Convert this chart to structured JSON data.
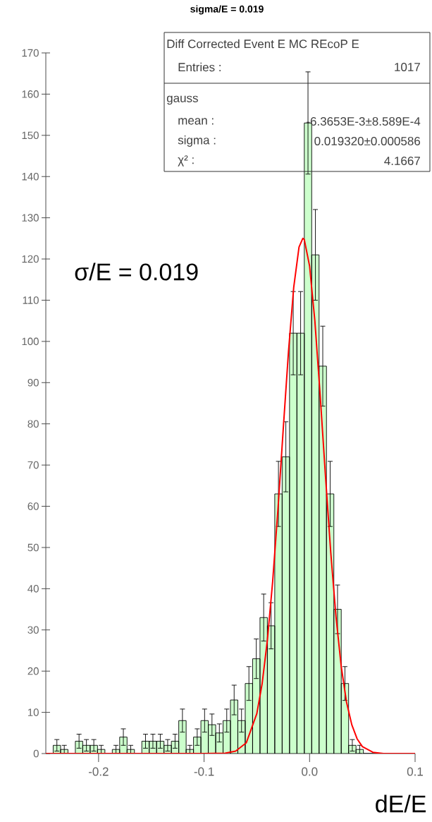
{
  "chart_data": {
    "type": "histogram",
    "title": "sigma/E = 0.019",
    "xlabel": "dE/E",
    "xlim": [
      -0.25,
      0.1
    ],
    "xticks": [
      -0.2,
      -0.1,
      {
        "value": 0,
        "label": "0.0"
      },
      0.1
    ],
    "ylim": [
      0,
      170
    ],
    "yticks": [
      0,
      10,
      20,
      30,
      40,
      50,
      60,
      70,
      80,
      90,
      100,
      110,
      120,
      130,
      140,
      150,
      160,
      170
    ],
    "series": [
      {
        "color": "#ccffcc",
        "bins": [
          -0.25,
          -0.243,
          -0.236,
          -0.229,
          -0.222,
          -0.215,
          -0.208,
          -0.201,
          -0.194,
          -0.187,
          -0.18,
          -0.173,
          -0.166,
          -0.159,
          -0.152,
          -0.145,
          -0.138,
          -0.131,
          -0.124,
          -0.117,
          -0.11,
          -0.103,
          -0.096,
          -0.089,
          -0.082,
          -0.075,
          -0.068,
          -0.061,
          -0.054,
          -0.047,
          -0.04,
          -0.033,
          -0.026,
          -0.019,
          -0.012,
          -0.005,
          0.002,
          0.009,
          0.016,
          0.023,
          0.03,
          0.037,
          0.044,
          0.051,
          0.058,
          0.065,
          0.072,
          0.079,
          0.086,
          0.093,
          0.1
        ],
        "values": [
          0,
          2,
          1,
          0,
          3,
          2,
          2,
          1,
          0,
          1,
          4,
          1,
          0,
          3,
          3,
          3,
          2,
          3,
          8,
          1,
          4,
          8,
          7,
          5,
          8,
          13,
          8,
          17,
          23,
          33,
          31,
          63,
          72,
          102,
          102,
          153,
          121,
          94,
          63,
          35,
          17,
          2,
          1,
          0,
          0,
          0,
          0,
          0,
          0,
          0
        ],
        "errors": [
          null,
          1.4,
          1,
          null,
          1.7,
          1.4,
          1.4,
          1,
          null,
          1,
          2,
          1,
          null,
          1.7,
          1.7,
          1.7,
          1.4,
          1.7,
          2.8,
          1,
          2,
          2.8,
          2.6,
          2.2,
          2.8,
          3.6,
          2.8,
          4.1,
          4.8,
          5.7,
          5.6,
          7.9,
          8.5,
          10.1,
          10.1,
          12.4,
          11,
          9.7,
          7.9,
          5.9,
          4.1,
          1.4,
          1,
          null,
          null,
          null,
          null,
          null,
          null,
          null
        ]
      },
      {
        "type": "line",
        "color": "#ff0000",
        "x": [
          -0.25,
          -0.1,
          -0.08,
          -0.07,
          -0.06,
          -0.05,
          -0.045,
          -0.04,
          -0.035,
          -0.03,
          -0.025,
          -0.02,
          -0.015,
          -0.01,
          -0.0064,
          -0.005,
          0,
          0.005,
          0.01,
          0.015,
          0.02,
          0.025,
          0.03,
          0.035,
          0.04,
          0.045,
          0.05,
          0.06,
          0.07,
          0.1
        ],
        "values": [
          0,
          0,
          0.1,
          0.6,
          2.6,
          9.7,
          16.9,
          27.5,
          41.7,
          59.2,
          78.6,
          97.5,
          113.2,
          122.9,
          125,
          124.7,
          118.3,
          105,
          87.1,
          67.6,
          49,
          33.3,
          21.1,
          12.5,
          7,
          3.6,
          1.7,
          0.3,
          0,
          0
        ]
      }
    ],
    "annotations": [
      "σ/E = 0.019",
      "Diff Corrected Event E MC REcoP E",
      "Entries :",
      "1017",
      "gauss",
      "mean :",
      "-6.3653E-3±8.589E-4",
      "sigma :",
      "0.019320±0.000586",
      "χ² :",
      "4.1667"
    ]
  }
}
